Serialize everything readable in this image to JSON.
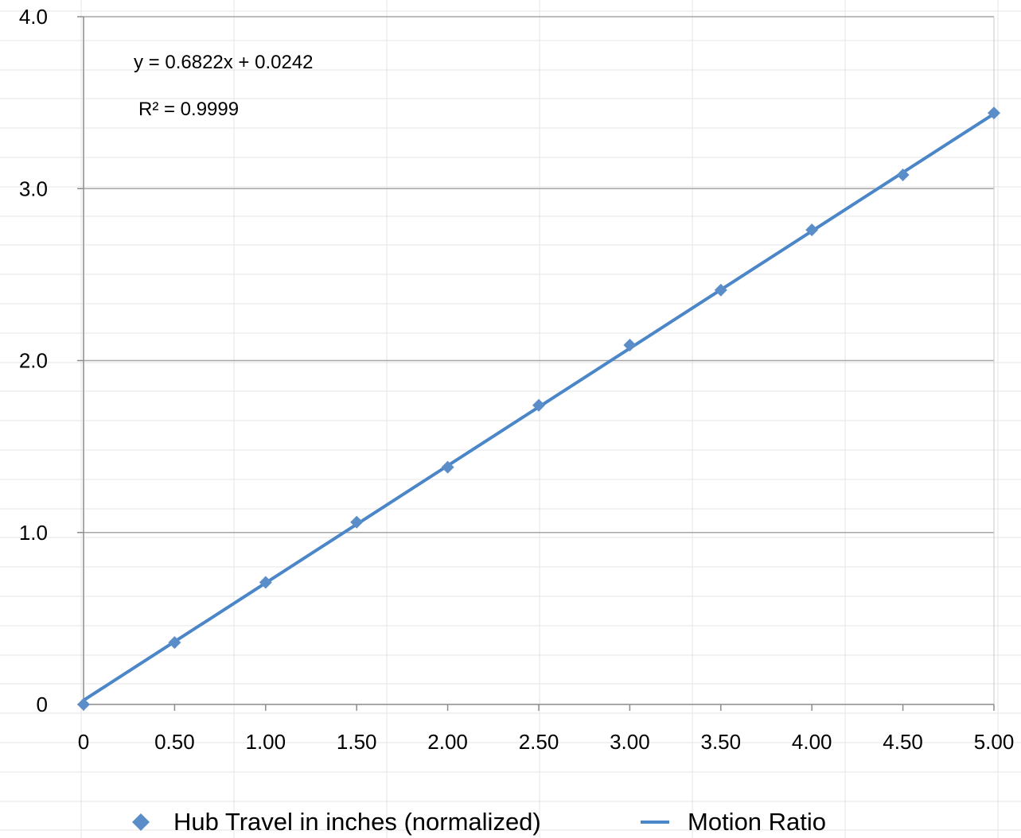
{
  "chart_data": {
    "type": "scatter",
    "xlim": [
      0,
      5
    ],
    "ylim": [
      0,
      4
    ],
    "x_ticks": [
      "0",
      "0.50",
      "1.00",
      "1.50",
      "2.00",
      "2.50",
      "3.00",
      "3.50",
      "4.00",
      "4.50",
      "5.00"
    ],
    "y_ticks": [
      "0",
      "1.0",
      "2.0",
      "3.0",
      "4.0"
    ],
    "grid": true,
    "legend_position": "bottom",
    "series": [
      {
        "name": "Hub Travel in inches (normalized)",
        "kind": "markers",
        "marker": "diamond",
        "color": "#5b8ec8",
        "x": [
          0,
          0.5,
          1.0,
          1.5,
          2.0,
          2.5,
          3.0,
          3.5,
          4.0,
          4.5,
          5.0
        ],
        "y": [
          0,
          0.36,
          0.71,
          1.06,
          1.38,
          1.74,
          2.09,
          2.41,
          2.76,
          3.08,
          3.44
        ]
      },
      {
        "name": "Motion Ratio",
        "kind": "trendline",
        "color": "#4a86c8",
        "slope": 0.6822,
        "intercept": 0.0242
      }
    ],
    "annotations": {
      "equation": "y = 0.6822x + 0.0242",
      "r_squared": "R² = 0.9999"
    }
  }
}
